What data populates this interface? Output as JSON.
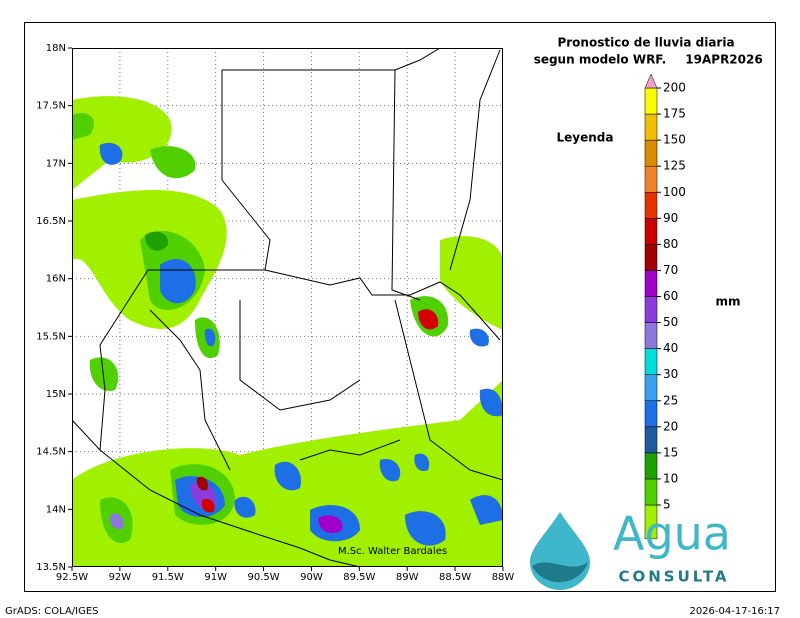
{
  "title": "Pronostico de lluvia diaria",
  "subtitle": "segun modelo WRF.",
  "date": "19APR2026",
  "legend_title": "Leyenda",
  "units": "mm",
  "map": {
    "xlim": [
      -92.5,
      -88
    ],
    "ylim": [
      13.5,
      18
    ],
    "xticks": [
      {
        "value": -92.5,
        "label": "92.5W"
      },
      {
        "value": -92,
        "label": "92W"
      },
      {
        "value": -91.5,
        "label": "91.5W"
      },
      {
        "value": -91,
        "label": "91W"
      },
      {
        "value": -90.5,
        "label": "90.5W"
      },
      {
        "value": -90,
        "label": "90W"
      },
      {
        "value": -89.5,
        "label": "89.5W"
      },
      {
        "value": -89,
        "label": "89W"
      },
      {
        "value": -88.5,
        "label": "88.5W"
      },
      {
        "value": -88,
        "label": "88W"
      }
    ],
    "yticks": [
      {
        "value": 13.5,
        "label": "13.5N"
      },
      {
        "value": 14,
        "label": "14N"
      },
      {
        "value": 14.5,
        "label": "14.5N"
      },
      {
        "value": 15,
        "label": "15N"
      },
      {
        "value": 15.5,
        "label": "15.5N"
      },
      {
        "value": 16,
        "label": "16N"
      },
      {
        "value": 16.5,
        "label": "16.5N"
      },
      {
        "value": 17,
        "label": "17N"
      },
      {
        "value": 17.5,
        "label": "17.5N"
      },
      {
        "value": 18,
        "label": "18N"
      }
    ],
    "grid": true
  },
  "colorbar": {
    "levels": [
      5,
      10,
      15,
      20,
      25,
      30,
      40,
      50,
      60,
      70,
      80,
      90,
      100,
      125,
      150,
      175,
      200
    ],
    "colors": [
      "#a0f000",
      "#50d000",
      "#1ea000",
      "#1e5aa0",
      "#1e6ee6",
      "#3ca0f0",
      "#00dcdc",
      "#8c78dc",
      "#8c3cdc",
      "#a000c8",
      "#a00000",
      "#c80000",
      "#e63200",
      "#f08228",
      "#dc8c00",
      "#f0c000",
      "#fafa00",
      "#f0a0c8"
    ]
  },
  "credit": "M.Sc. Walter Bardales",
  "footer_left": "GrADS: COLA/IGES",
  "footer_right": "2026-04-17-16:17",
  "logo": {
    "word": "Agua",
    "tagline": "CONSULTA"
  }
}
